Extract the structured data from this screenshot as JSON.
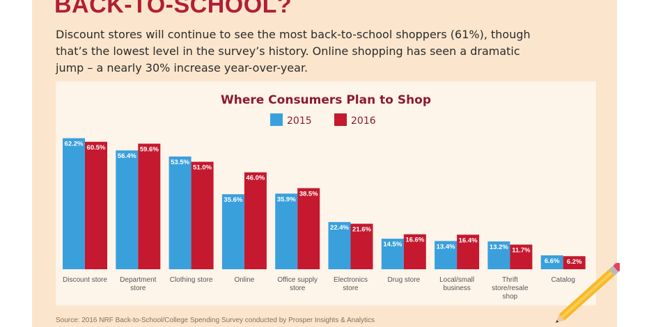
{
  "headline": "BACK-TO-SCHOOL?",
  "intro": "Discount stores will continue to see the most back-to-school shoppers (61%), though that’s the lowest level in the survey’s history. Online shopping has seen a dramatic jump – a nearly 30% increase year-over-year.",
  "source": "Source: 2016 NRF Back-to-School/College Spending Survey conducted by Prosper Insights & Analytics",
  "colors": {
    "background": "#fbe6cd",
    "chart_bg": "#fdf4ea",
    "title": "#8b1a2e",
    "headline": "#b21e35",
    "s2015": "#3aa0dc",
    "s2016": "#c4192e"
  },
  "chart_data": {
    "type": "bar",
    "title": "Where Consumers Plan to Shop",
    "categories": [
      [
        "Discount store"
      ],
      [
        "Department",
        "store"
      ],
      [
        "Clothing store"
      ],
      [
        "Online"
      ],
      [
        "Office supply",
        "store"
      ],
      [
        "Electronics",
        "store"
      ],
      [
        "Drug store"
      ],
      [
        "Local/small",
        "business"
      ],
      [
        "Thrift",
        "store/resale",
        "shop"
      ],
      [
        "Catalog"
      ]
    ],
    "series": [
      {
        "name": "2015",
        "values": [
          62.2,
          56.4,
          53.5,
          35.6,
          35.9,
          22.4,
          14.5,
          13.4,
          13.2,
          6.6
        ],
        "labels": [
          "62.2%",
          "56.4%",
          "53.5%",
          "35.6%",
          "35.9%",
          "22.4%",
          "14.5%",
          "13.4%",
          "13.2%",
          "6.6%"
        ]
      },
      {
        "name": "2016",
        "values": [
          60.5,
          59.6,
          51.0,
          46.0,
          38.5,
          21.6,
          16.6,
          16.4,
          11.7,
          6.2
        ],
        "labels": [
          "60.5%",
          "59.6%",
          "51.0%",
          "46.0%",
          "38.5%",
          "21.6%",
          "16.6%",
          "16.4%",
          "11.7%",
          "6.2%"
        ]
      }
    ],
    "ylim": [
      0,
      70
    ],
    "legend": "top-center",
    "grid": false
  }
}
